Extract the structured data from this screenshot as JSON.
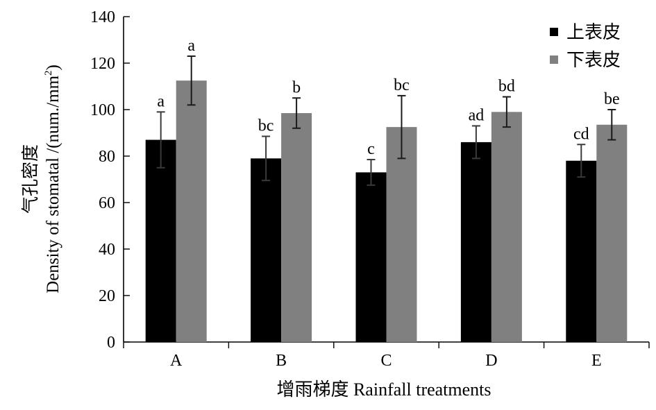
{
  "chart_data": {
    "type": "bar",
    "xlabel": "增雨梯度 Rainfall treatments",
    "ylabel_cn": "气孔密度",
    "ylabel_en": "Density of stomatal /(num./mm",
    "ylabel_sup": "2",
    "ylabel_close": ")",
    "ylim": [
      0,
      140
    ],
    "yticks": [
      0,
      20,
      40,
      60,
      80,
      100,
      120,
      140
    ],
    "legend_position": "top-right",
    "categories": [
      "A",
      "B",
      "C",
      "D",
      "E"
    ],
    "series": [
      {
        "name": "上表皮",
        "color": "#000000",
        "values": [
          87,
          79,
          73,
          86,
          78
        ],
        "errors": [
          12,
          9.5,
          5.5,
          7,
          7
        ],
        "letters": [
          "a",
          "bc",
          "c",
          "ad",
          "cd"
        ]
      },
      {
        "name": "下表皮",
        "color": "#808080",
        "values": [
          112.5,
          98.5,
          92.5,
          99,
          93.5
        ],
        "errors": [
          10.5,
          6.5,
          13.5,
          6.5,
          6.5
        ],
        "letters": [
          "a",
          "b",
          "bc",
          "bd",
          "be"
        ]
      }
    ]
  }
}
